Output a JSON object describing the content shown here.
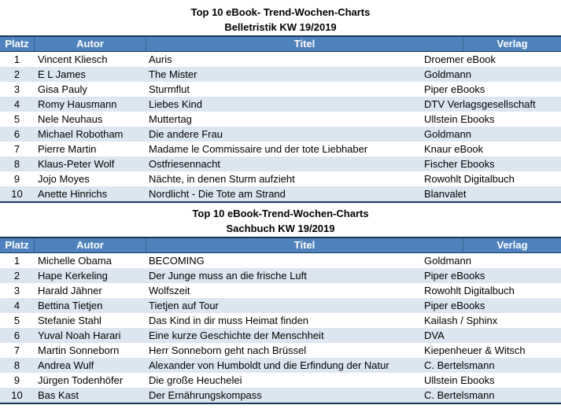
{
  "colors": {
    "header_bg": "#4f81bd",
    "header_text": "#ffffff",
    "stripe_bg": "#dce6f1",
    "navy_border": "#17365d",
    "header_divider": "#36618f"
  },
  "tables": [
    {
      "title": "Top 10 eBook- Trend-Wochen-Charts",
      "subtitle": "Belletristik KW 19/2019",
      "headers": [
        "Platz",
        "Autor",
        "Titel",
        "Verlag"
      ],
      "rows": [
        [
          "1",
          "Vincent Kliesch",
          "Auris",
          "Droemer eBook"
        ],
        [
          "2",
          "E L James",
          "The Mister",
          "Goldmann"
        ],
        [
          "3",
          "Gisa Pauly",
          "Sturmflut",
          "Piper eBooks"
        ],
        [
          "4",
          "Romy Hausmann",
          "Liebes Kind",
          "DTV Verlagsgesellschaft"
        ],
        [
          "5",
          "Nele Neuhaus",
          "Muttertag",
          "Ullstein Ebooks"
        ],
        [
          "6",
          "Michael Robotham",
          "Die andere Frau",
          "Goldmann"
        ],
        [
          "7",
          "Pierre Martin",
          "Madame le Commissaire und der tote Liebhaber",
          "Knaur eBook"
        ],
        [
          "8",
          "Klaus-Peter Wolf",
          "Ostfriesennacht",
          "Fischer Ebooks"
        ],
        [
          "9",
          "Jojo Moyes",
          "Nächte, in denen Sturm aufzieht",
          "Rowohlt Digitalbuch"
        ],
        [
          "10",
          "Anette Hinrichs",
          "Nordlicht - Die Tote am Strand",
          "Blanvalet"
        ]
      ]
    },
    {
      "title": "Top 10 eBook-Trend-Wochen-Charts",
      "subtitle": "Sachbuch KW 19/2019",
      "headers": [
        "Platz",
        "Autor",
        "Titel",
        "Verlag"
      ],
      "rows": [
        [
          "1",
          "Michelle Obama",
          "BECOMING",
          "Goldmann"
        ],
        [
          "2",
          "Hape Kerkeling",
          "Der Junge muss an die frische Luft",
          "Piper eBooks"
        ],
        [
          "3",
          "Harald Jähner",
          "Wolfszeit",
          "Rowohlt Digitalbuch"
        ],
        [
          "4",
          "Bettina Tietjen",
          "Tietjen auf Tour",
          "Piper eBooks"
        ],
        [
          "5",
          "Stefanie Stahl",
          "Das Kind in dir muss Heimat finden",
          "Kailash / Sphinx"
        ],
        [
          "6",
          "Yuval Noah Harari",
          "Eine kurze Geschichte der Menschheit",
          "DVA"
        ],
        [
          "7",
          "Martin Sonneborn",
          "Herr Sonneborn geht nach Brüssel",
          "Kiepenheuer & Witsch"
        ],
        [
          "8",
          "Andrea Wulf",
          "Alexander von Humboldt und die Erfindung der Natur",
          "C. Bertelsmann"
        ],
        [
          "9",
          "Jürgen Todenhöfer",
          "Die große Heuchelei",
          "Ullstein Ebooks"
        ],
        [
          "10",
          "Bas Kast",
          "Der Ernährungskompass",
          "C. Bertelsmann"
        ]
      ]
    }
  ]
}
